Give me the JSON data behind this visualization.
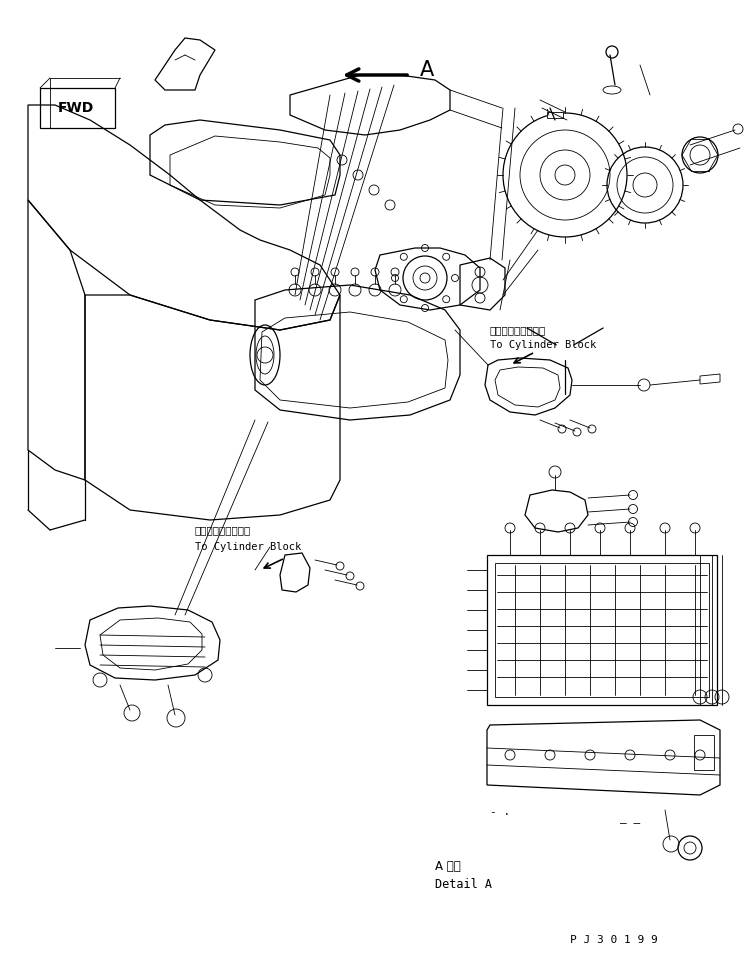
{
  "bg_color": "#ffffff",
  "line_color": "#000000",
  "figsize": [
    7.53,
    9.59
  ],
  "dpi": 100,
  "arrow_label": "A",
  "fwd_label": "FWD",
  "text1_jp": "シリンダブロックへ",
  "text1_en": "To Cylinder Block",
  "text2_jp": "シリンダブロックへ",
  "text2_en": "To Cylinder Block",
  "detail_jp": "A 詳細",
  "detail_en": "Detail A",
  "part_no": "P J 3 0 1 9 9"
}
